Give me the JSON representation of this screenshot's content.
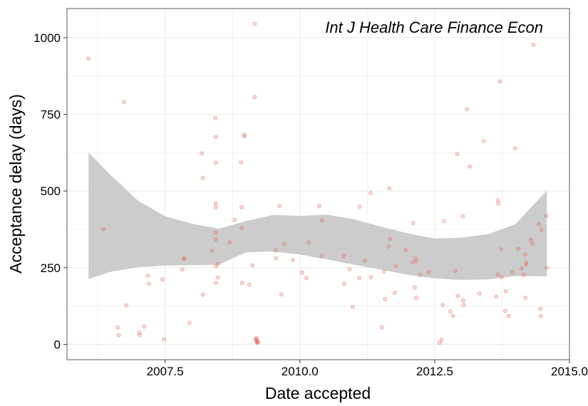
{
  "chart_data": {
    "type": "scatter",
    "title": "Int J Health Care Finance Econ",
    "xlabel": "Date accepted",
    "ylabel": "Acceptance delay (days)",
    "xlim": [
      2005.68,
      2015.0
    ],
    "ylim": [
      -50,
      1095
    ],
    "x_ticks": [
      2007.5,
      2010.0,
      2012.5,
      2015.0
    ],
    "x_tick_labels": [
      "2007.5",
      "2010.0",
      "2012.5",
      "2015.0"
    ],
    "y_ticks": [
      0,
      250,
      500,
      750,
      1000
    ],
    "y_tick_labels": [
      "0",
      "250",
      "500",
      "750",
      "1000"
    ],
    "grid": true,
    "colors": {
      "points": "#e8645a",
      "band": "#cccccc",
      "grid": "#ebebeb",
      "frame": "#7f7f7f"
    },
    "points": [
      {
        "x": 2006.08,
        "y": 932
      },
      {
        "x": 2006.35,
        "y": 376
      },
      {
        "x": 2006.62,
        "y": 55
      },
      {
        "x": 2006.64,
        "y": 30
      },
      {
        "x": 2006.74,
        "y": 790
      },
      {
        "x": 2006.78,
        "y": 127
      },
      {
        "x": 2007.02,
        "y": 38
      },
      {
        "x": 2007.03,
        "y": 30
      },
      {
        "x": 2007.11,
        "y": 58
      },
      {
        "x": 2007.18,
        "y": 224
      },
      {
        "x": 2007.2,
        "y": 198
      },
      {
        "x": 2007.45,
        "y": 212
      },
      {
        "x": 2007.48,
        "y": 16
      },
      {
        "x": 2007.82,
        "y": 245
      },
      {
        "x": 2007.84,
        "y": 278
      },
      {
        "x": 2007.86,
        "y": 282
      },
      {
        "x": 2007.95,
        "y": 70
      },
      {
        "x": 2008.18,
        "y": 623
      },
      {
        "x": 2008.2,
        "y": 543
      },
      {
        "x": 2008.2,
        "y": 162
      },
      {
        "x": 2008.37,
        "y": 305
      },
      {
        "x": 2008.43,
        "y": 738
      },
      {
        "x": 2008.44,
        "y": 676
      },
      {
        "x": 2008.44,
        "y": 592
      },
      {
        "x": 2008.44,
        "y": 460
      },
      {
        "x": 2008.44,
        "y": 447
      },
      {
        "x": 2008.44,
        "y": 365
      },
      {
        "x": 2008.44,
        "y": 343
      },
      {
        "x": 2008.44,
        "y": 255
      },
      {
        "x": 2008.44,
        "y": 200
      },
      {
        "x": 2008.48,
        "y": 262
      },
      {
        "x": 2008.48,
        "y": 218
      },
      {
        "x": 2008.7,
        "y": 333
      },
      {
        "x": 2008.79,
        "y": 406
      },
      {
        "x": 2008.91,
        "y": 594
      },
      {
        "x": 2008.92,
        "y": 447
      },
      {
        "x": 2008.92,
        "y": 380
      },
      {
        "x": 2008.93,
        "y": 200
      },
      {
        "x": 2008.97,
        "y": 683
      },
      {
        "x": 2008.97,
        "y": 678
      },
      {
        "x": 2009.06,
        "y": 195
      },
      {
        "x": 2009.12,
        "y": 258
      },
      {
        "x": 2009.16,
        "y": 1045
      },
      {
        "x": 2009.16,
        "y": 806
      },
      {
        "x": 2009.18,
        "y": 18
      },
      {
        "x": 2009.19,
        "y": 14
      },
      {
        "x": 2009.2,
        "y": 10
      },
      {
        "x": 2009.21,
        "y": 7
      },
      {
        "x": 2009.21,
        "y": 5
      },
      {
        "x": 2009.22,
        "y": 8
      },
      {
        "x": 2009.2,
        "y": 20
      },
      {
        "x": 2009.55,
        "y": 306
      },
      {
        "x": 2009.56,
        "y": 281
      },
      {
        "x": 2009.62,
        "y": 451
      },
      {
        "x": 2009.66,
        "y": 163
      },
      {
        "x": 2009.71,
        "y": 328
      },
      {
        "x": 2009.87,
        "y": 275
      },
      {
        "x": 2010.04,
        "y": 234
      },
      {
        "x": 2010.12,
        "y": 216
      },
      {
        "x": 2010.16,
        "y": 333
      },
      {
        "x": 2010.36,
        "y": 451
      },
      {
        "x": 2010.41,
        "y": 404
      },
      {
        "x": 2010.4,
        "y": 289
      },
      {
        "x": 2010.81,
        "y": 288
      },
      {
        "x": 2010.82,
        "y": 198
      },
      {
        "x": 2010.92,
        "y": 245
      },
      {
        "x": 2010.98,
        "y": 122
      },
      {
        "x": 2011.11,
        "y": 449
      },
      {
        "x": 2011.1,
        "y": 216
      },
      {
        "x": 2011.21,
        "y": 273
      },
      {
        "x": 2011.31,
        "y": 493
      },
      {
        "x": 2011.32,
        "y": 219
      },
      {
        "x": 2011.52,
        "y": 55
      },
      {
        "x": 2011.56,
        "y": 238
      },
      {
        "x": 2011.58,
        "y": 148
      },
      {
        "x": 2011.64,
        "y": 319
      },
      {
        "x": 2011.66,
        "y": 509
      },
      {
        "x": 2011.67,
        "y": 344
      },
      {
        "x": 2011.76,
        "y": 168
      },
      {
        "x": 2011.78,
        "y": 256
      },
      {
        "x": 2011.96,
        "y": 308
      },
      {
        "x": 2012.1,
        "y": 396
      },
      {
        "x": 2012.09,
        "y": 268
      },
      {
        "x": 2012.13,
        "y": 185
      },
      {
        "x": 2012.16,
        "y": 152
      },
      {
        "x": 2012.14,
        "y": 282
      },
      {
        "x": 2012.16,
        "y": 271
      },
      {
        "x": 2012.23,
        "y": 226
      },
      {
        "x": 2012.39,
        "y": 235
      },
      {
        "x": 2012.59,
        "y": 5
      },
      {
        "x": 2012.63,
        "y": 15
      },
      {
        "x": 2012.67,
        "y": 402
      },
      {
        "x": 2012.65,
        "y": 128
      },
      {
        "x": 2012.79,
        "y": 108
      },
      {
        "x": 2012.84,
        "y": 93
      },
      {
        "x": 2012.88,
        "y": 240
      },
      {
        "x": 2012.92,
        "y": 621
      },
      {
        "x": 2012.93,
        "y": 158
      },
      {
        "x": 2013.02,
        "y": 418
      },
      {
        "x": 2013.03,
        "y": 143
      },
      {
        "x": 2013.04,
        "y": 128
      },
      {
        "x": 2013.1,
        "y": 767
      },
      {
        "x": 2013.15,
        "y": 580
      },
      {
        "x": 2013.33,
        "y": 166
      },
      {
        "x": 2013.41,
        "y": 663
      },
      {
        "x": 2013.64,
        "y": 155
      },
      {
        "x": 2013.67,
        "y": 470
      },
      {
        "x": 2013.68,
        "y": 459
      },
      {
        "x": 2013.67,
        "y": 228
      },
      {
        "x": 2013.71,
        "y": 857
      },
      {
        "x": 2013.74,
        "y": 219
      },
      {
        "x": 2013.73,
        "y": 310
      },
      {
        "x": 2013.81,
        "y": 109
      },
      {
        "x": 2013.82,
        "y": 173
      },
      {
        "x": 2013.87,
        "y": 93
      },
      {
        "x": 2013.94,
        "y": 235
      },
      {
        "x": 2013.99,
        "y": 639
      },
      {
        "x": 2014.05,
        "y": 311
      },
      {
        "x": 2014.11,
        "y": 248
      },
      {
        "x": 2014.15,
        "y": 227
      },
      {
        "x": 2014.17,
        "y": 293
      },
      {
        "x": 2014.18,
        "y": 152
      },
      {
        "x": 2014.2,
        "y": 266
      },
      {
        "x": 2014.2,
        "y": 260
      },
      {
        "x": 2014.29,
        "y": 341
      },
      {
        "x": 2014.31,
        "y": 329
      },
      {
        "x": 2014.33,
        "y": 977
      },
      {
        "x": 2014.43,
        "y": 391
      },
      {
        "x": 2014.46,
        "y": 116
      },
      {
        "x": 2014.47,
        "y": 92
      },
      {
        "x": 2014.48,
        "y": 373
      },
      {
        "x": 2014.57,
        "y": 419
      },
      {
        "x": 2014.58,
        "y": 250
      }
    ],
    "smooth_band": {
      "x": [
        2006.08,
        2006.5,
        2007.0,
        2007.5,
        2008.0,
        2008.5,
        2009.0,
        2009.5,
        2010.0,
        2010.5,
        2011.0,
        2011.5,
        2012.0,
        2012.5,
        2013.0,
        2013.5,
        2014.0,
        2014.58
      ],
      "upper": [
        625,
        550,
        468,
        418,
        393,
        377,
        402,
        422,
        419,
        423,
        408,
        384,
        362,
        345,
        348,
        360,
        392,
        502
      ],
      "lower": [
        213,
        237,
        252,
        257,
        258,
        260,
        300,
        303,
        293,
        277,
        260,
        244,
        227,
        215,
        210,
        212,
        223,
        222
      ]
    }
  }
}
